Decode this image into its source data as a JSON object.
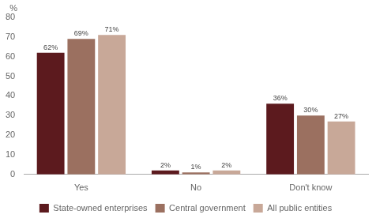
{
  "chart_data": {
    "type": "bar",
    "ylabel": "%",
    "categories": [
      "Yes",
      "No",
      "Don't know"
    ],
    "series": [
      {
        "name": "State-owned enterprises",
        "color": "#5C1A1E",
        "values": [
          62,
          2,
          36
        ],
        "value_labels": [
          "62%",
          "2%",
          "36%"
        ]
      },
      {
        "name": "Central government",
        "color": "#9B7060",
        "values": [
          69,
          1,
          30
        ],
        "value_labels": [
          "69%",
          "1%",
          "30%"
        ]
      },
      {
        "name": "All public entities",
        "color": "#C8A898",
        "values": [
          71,
          2,
          27
        ],
        "value_labels": [
          "71%",
          "2%",
          "27%"
        ]
      }
    ],
    "ylim": [
      0,
      80
    ],
    "yticks": [
      0,
      10,
      20,
      30,
      40,
      50,
      60,
      70,
      80
    ],
    "grid": false,
    "legend": "bottom",
    "data_labels": true
  }
}
